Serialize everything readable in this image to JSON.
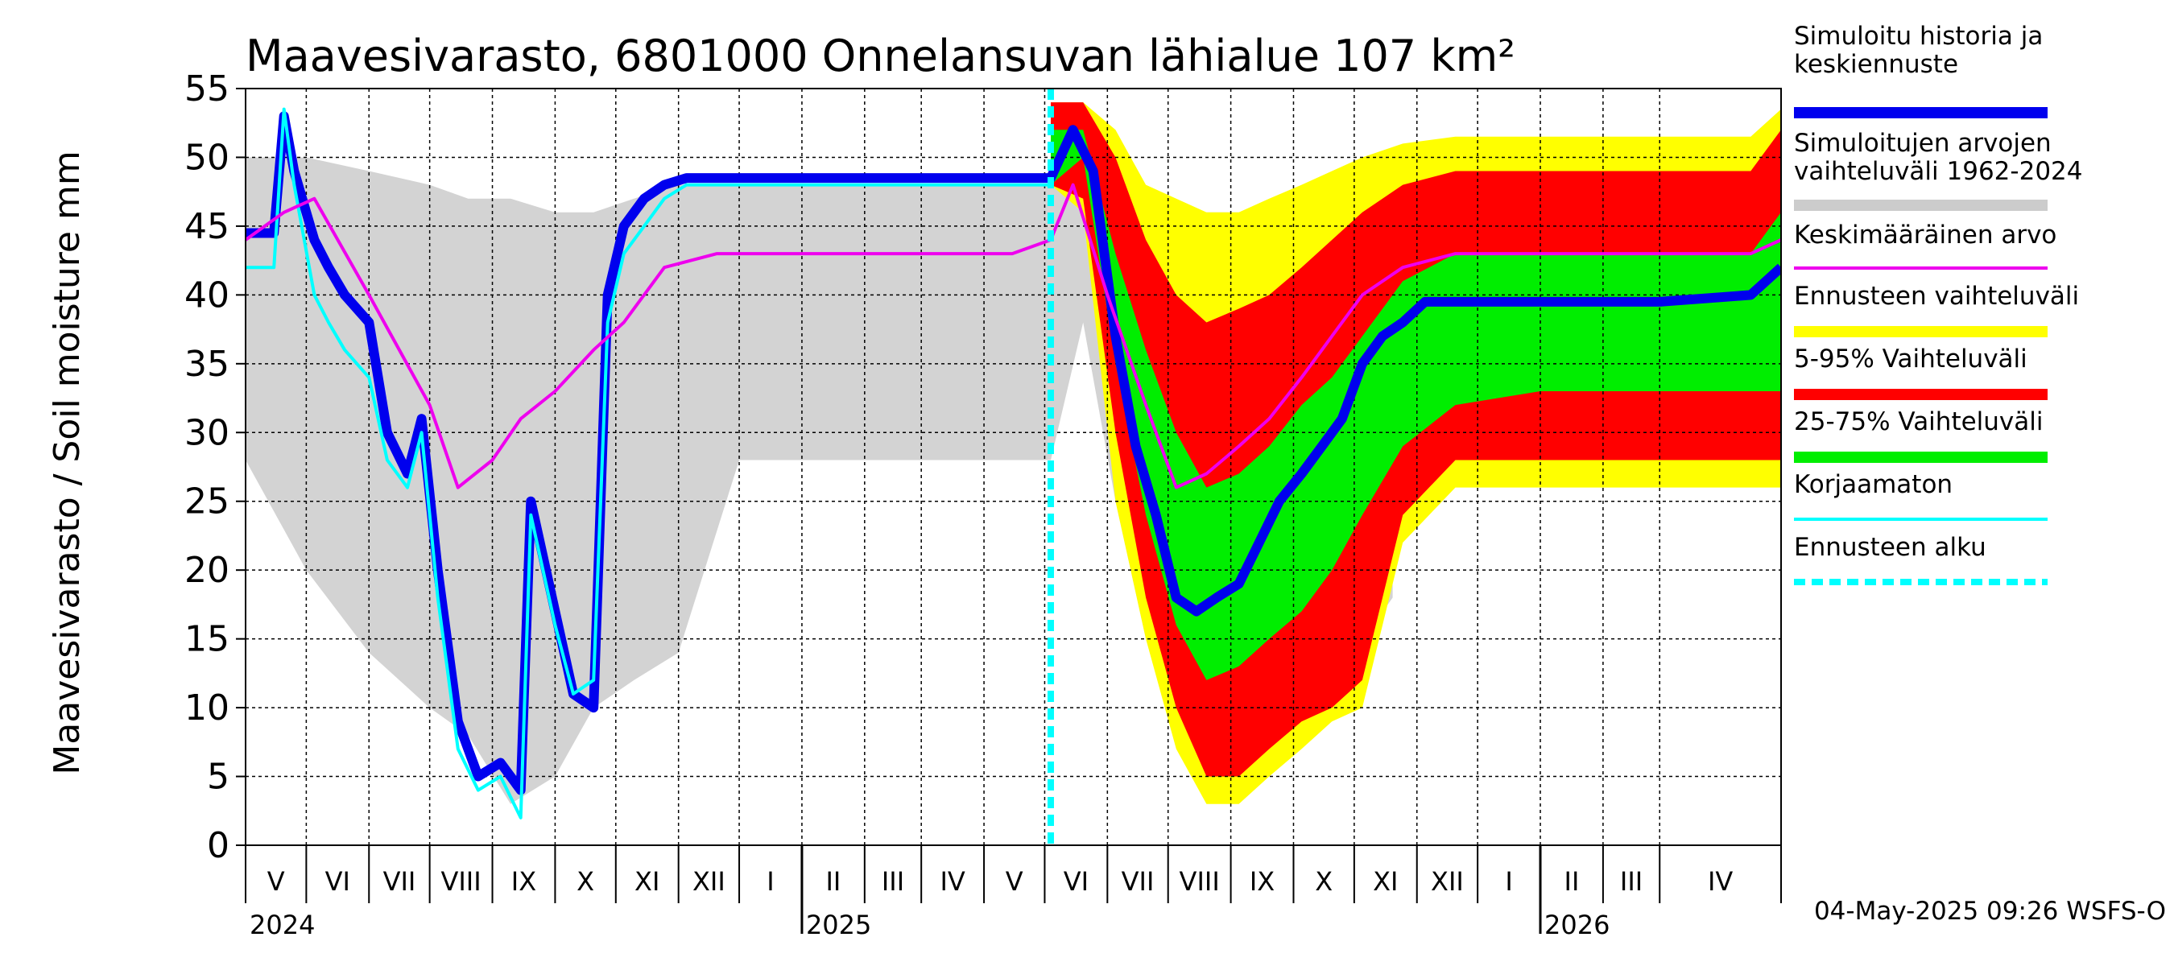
{
  "chart_data": {
    "type": "area",
    "title": "Maavesivarasto, 6801000 Onnelansuvan lähialue 107 km²",
    "ylabel": "Maavesivarasto / Soil moisture   mm",
    "ylim": [
      0,
      55
    ],
    "yticks": [
      "0",
      "5",
      "10",
      "15",
      "20",
      "25",
      "30",
      "35",
      "40",
      "45",
      "50",
      "55"
    ],
    "x_range": [
      "2024-04-01",
      "2026-04-30"
    ],
    "months": [
      "V",
      "VI",
      "VII",
      "VIII",
      "IX",
      "X",
      "XI",
      "XII",
      "I",
      "II",
      "III",
      "IV",
      "V",
      "VI",
      "VII",
      "VIII",
      "IX",
      "X",
      "XI",
      "XII",
      "I",
      "II",
      "III",
      "IV"
    ],
    "years": [
      "2024",
      "2025",
      "2026"
    ],
    "grid": true,
    "legend_position": "right",
    "forecast_start": "2025-05-04",
    "legend": [
      {
        "label_lines": [
          "Simuloitu historia ja",
          "keskiennuste"
        ],
        "color": "#0000ee",
        "style": "thick"
      },
      {
        "label_lines": [
          "Simuloitujen arvojen",
          "vaihteluväli 1962-2024"
        ],
        "color": "#cccccc",
        "style": "thick"
      },
      {
        "label_lines": [
          "Keskimääräinen arvo"
        ],
        "color": "#ee00ee",
        "style": "thin"
      },
      {
        "label_lines": [
          "Ennusteen vaihteluväli"
        ],
        "color": "#ffff00",
        "style": "thick"
      },
      {
        "label_lines": [
          "5-95% Vaihteluväli"
        ],
        "color": "#ff0000",
        "style": "thick"
      },
      {
        "label_lines": [
          "25-75% Vaihteluväli"
        ],
        "color": "#00ee00",
        "style": "thick"
      },
      {
        "label_lines": [
          "Korjaamaton"
        ],
        "color": "#00ffff",
        "style": "thin"
      },
      {
        "label_lines": [
          "Ennusteen alku"
        ],
        "color": "#00ffff",
        "style": "dashed"
      }
    ],
    "series": [
      {
        "name": "Simuloitu historia ja keskiennuste",
        "color": "#0000ee",
        "x": [
          "2024-04-01",
          "2024-04-15",
          "2024-04-20",
          "2024-04-25",
          "2024-05-05",
          "2024-05-12",
          "2024-05-20",
          "2024-06-01",
          "2024-06-10",
          "2024-06-20",
          "2024-06-27",
          "2024-07-05",
          "2024-07-15",
          "2024-07-25",
          "2024-08-05",
          "2024-08-15",
          "2024-08-20",
          "2024-09-01",
          "2024-09-10",
          "2024-09-20",
          "2024-09-27",
          "2024-10-05",
          "2024-10-15",
          "2024-10-25",
          "2024-11-05",
          "2024-11-20",
          "2025-01-01",
          "2025-03-01",
          "2025-04-15",
          "2025-05-04",
          "2025-05-15",
          "2025-05-25",
          "2025-06-05",
          "2025-06-15",
          "2025-06-25",
          "2025-07-05",
          "2025-07-15",
          "2025-07-25",
          "2025-08-05",
          "2025-08-15",
          "2025-08-25",
          "2025-09-05",
          "2025-09-15",
          "2025-09-25",
          "2025-10-05",
          "2025-10-15",
          "2025-10-25",
          "2025-11-05",
          "2025-11-20",
          "2026-01-01",
          "2026-03-01",
          "2026-04-15",
          "2026-04-30"
        ],
        "values": [
          44.5,
          44.5,
          53,
          49,
          44,
          42,
          40,
          38,
          30,
          27,
          31,
          20,
          9,
          5,
          6,
          4,
          25,
          17,
          11,
          10,
          40,
          45,
          47,
          48,
          48.5,
          48.5,
          48.5,
          48.5,
          48.5,
          48.5,
          52,
          49,
          37,
          29,
          24,
          18,
          17,
          18,
          19,
          22,
          25,
          27,
          29,
          31,
          35,
          37,
          38,
          39.5,
          39.5,
          39.5,
          39.5,
          40,
          42
        ]
      },
      {
        "name": "Korjaamaton",
        "color": "#00ffff",
        "x": [
          "2024-04-01",
          "2024-04-15",
          "2024-04-20",
          "2024-04-25",
          "2024-05-05",
          "2024-05-12",
          "2024-05-20",
          "2024-06-01",
          "2024-06-10",
          "2024-06-20",
          "2024-06-27",
          "2024-07-05",
          "2024-07-15",
          "2024-07-25",
          "2024-08-05",
          "2024-08-15",
          "2024-08-20",
          "2024-09-01",
          "2024-09-10",
          "2024-09-20",
          "2024-09-27",
          "2024-10-05",
          "2024-10-15",
          "2024-10-25",
          "2024-11-05",
          "2024-11-20",
          "2025-01-01",
          "2025-03-01",
          "2025-04-15",
          "2025-05-04"
        ],
        "values": [
          42,
          42,
          53.5,
          48,
          40,
          38,
          36,
          34,
          28,
          26,
          30,
          18,
          7,
          4,
          5,
          2,
          24,
          16,
          11,
          12,
          38,
          43,
          45,
          47,
          48,
          48,
          48,
          48,
          48,
          48
        ]
      },
      {
        "name": "Keskimääräinen arvo",
        "color": "#ee00ee",
        "x": [
          "2024-04-01",
          "2024-04-20",
          "2024-05-05",
          "2024-06-01",
          "2024-07-01",
          "2024-07-15",
          "2024-08-01",
          "2024-08-15",
          "2024-09-01",
          "2024-09-20",
          "2024-10-05",
          "2024-10-25",
          "2024-11-20",
          "2025-01-01",
          "2025-03-01",
          "2025-04-15",
          "2025-05-04",
          "2025-05-15",
          "2025-06-01",
          "2025-06-20",
          "2025-07-05",
          "2025-07-20",
          "2025-08-05",
          "2025-08-20",
          "2025-09-05",
          "2025-09-20",
          "2025-10-05",
          "2025-10-25",
          "2025-11-20",
          "2026-01-01",
          "2026-03-01",
          "2026-04-15",
          "2026-04-30"
        ],
        "values": [
          44,
          46,
          47,
          40,
          32,
          26,
          28,
          31,
          33,
          36,
          38,
          42,
          43,
          43,
          43,
          43,
          44,
          48,
          40,
          32,
          26,
          27,
          29,
          31,
          34,
          37,
          40,
          42,
          43,
          43,
          43,
          43,
          44
        ]
      }
    ],
    "bands": [
      {
        "name": "Simuloitujen arvojen vaihteluväli 1962-2024",
        "color": "#d3d3d3",
        "x": [
          "2024-04-01",
          "2024-05-01",
          "2024-06-01",
          "2024-07-01",
          "2024-07-20",
          "2024-08-10",
          "2024-09-01",
          "2024-09-20",
          "2024-10-10",
          "2024-11-01",
          "2024-12-01",
          "2025-03-01",
          "2025-04-25",
          "2025-05-04",
          "2025-05-20",
          "2025-06-05",
          "2025-06-20",
          "2025-07-05",
          "2025-07-20",
          "2025-08-05",
          "2025-08-20",
          "2025-09-10",
          "2025-10-01",
          "2025-10-20"
        ],
        "low": [
          28,
          20,
          14,
          10,
          8,
          3,
          5,
          10,
          12,
          14,
          28,
          28,
          28,
          28,
          38,
          25,
          15,
          10,
          7,
          4,
          6,
          10,
          14,
          18
        ],
        "high": [
          50,
          50,
          49,
          48,
          47,
          47,
          46,
          46,
          47,
          48,
          48,
          48,
          48,
          48,
          53,
          50,
          46,
          46,
          46,
          46,
          46,
          46,
          48,
          49
        ]
      },
      {
        "name": "Ennusteen vaihteluväli",
        "color": "#ffff00",
        "x": [
          "2025-05-04",
          "2025-05-20",
          "2025-06-05",
          "2025-06-20",
          "2025-07-05",
          "2025-07-20",
          "2025-08-05",
          "2025-08-20",
          "2025-09-05",
          "2025-09-20",
          "2025-10-05",
          "2025-10-25",
          "2025-11-20",
          "2026-01-01",
          "2026-03-01",
          "2026-04-15",
          "2026-04-30"
        ],
        "low": [
          48,
          46,
          25,
          15,
          7,
          3,
          3,
          5,
          7,
          9,
          10,
          22,
          26,
          26,
          26,
          26,
          26
        ],
        "high": [
          54,
          54,
          52,
          48,
          47,
          46,
          46,
          47,
          48,
          49,
          50,
          51,
          51.5,
          51.5,
          51.5,
          51.5,
          53.5
        ]
      },
      {
        "name": "5-95% Vaihteluväli",
        "color": "#ff0000",
        "x": [
          "2025-05-04",
          "2025-05-20",
          "2025-06-05",
          "2025-06-20",
          "2025-07-05",
          "2025-07-20",
          "2025-08-05",
          "2025-08-20",
          "2025-09-05",
          "2025-09-20",
          "2025-10-05",
          "2025-10-25",
          "2025-11-20",
          "2026-01-01",
          "2026-03-01",
          "2026-04-15",
          "2026-04-30"
        ],
        "low": [
          48,
          47,
          30,
          18,
          10,
          5,
          5,
          7,
          9,
          10,
          12,
          24,
          28,
          28,
          28,
          28,
          28
        ],
        "high": [
          54,
          54,
          50,
          44,
          40,
          38,
          39,
          40,
          42,
          44,
          46,
          48,
          49,
          49,
          49,
          49,
          52
        ]
      },
      {
        "name": "25-75% Vaihteluväli",
        "color": "#00ee00",
        "x": [
          "2025-05-04",
          "2025-05-20",
          "2025-06-05",
          "2025-06-20",
          "2025-07-05",
          "2025-07-20",
          "2025-08-05",
          "2025-08-20",
          "2025-09-05",
          "2025-09-20",
          "2025-10-05",
          "2025-10-25",
          "2025-11-20",
          "2026-01-01",
          "2026-03-01",
          "2026-04-15",
          "2026-04-30"
        ],
        "low": [
          48,
          50,
          35,
          24,
          16,
          12,
          13,
          15,
          17,
          20,
          24,
          29,
          32,
          33,
          33,
          33,
          33
        ],
        "high": [
          52,
          52,
          43,
          36,
          30,
          26,
          27,
          29,
          32,
          34,
          37,
          41,
          43,
          43,
          43,
          43,
          46
        ]
      }
    ],
    "footer": "04-May-2025 09:26 WSFS-O"
  }
}
